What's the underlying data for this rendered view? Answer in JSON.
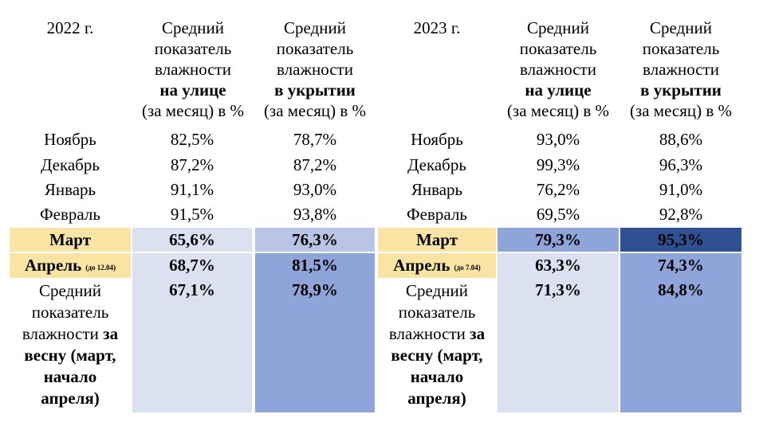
{
  "colors": {
    "highlight_month": "#fae4a4",
    "pale_blue": "#dbe1f1",
    "light_blue": "#b8c5e6",
    "medium_blue": "#8fa5d9",
    "dark_blue": "#2f5193"
  },
  "tables": [
    {
      "year": "2022 г.",
      "outdoor_header": [
        "Средний",
        "показатель",
        "влажности",
        "на улице",
        "(за месяц) в %"
      ],
      "shelter_header": [
        "Средний",
        "показатель",
        "влажности",
        "в укрытии",
        "(за месяц) в %"
      ],
      "rows": [
        {
          "month": "Ноябрь",
          "outdoor": "82,5%",
          "shelter": "78,7%"
        },
        {
          "month": "Декабрь",
          "outdoor": "87,2%",
          "shelter": "87,2%"
        },
        {
          "month": "Январь",
          "outdoor": "91,1%",
          "shelter": "93,0%"
        },
        {
          "month": "Февраль",
          "outdoor": "91,5%",
          "shelter": "93,8%"
        },
        {
          "month": "Март",
          "outdoor": "65,6%",
          "shelter": "76,3%"
        },
        {
          "month": "Апрель",
          "note": "(до 12.04)",
          "outdoor": "68,7%",
          "shelter": "81,5%"
        }
      ],
      "spring": {
        "label_lines": [
          "Средний",
          "показатель",
          "влажности ",
          "за",
          "весну (март,",
          "начало",
          "апреля)"
        ],
        "outdoor": "67,1%",
        "shelter": "78,9%"
      }
    },
    {
      "year": "2023 г.",
      "outdoor_header": [
        "Средний",
        "показатель",
        "влажности",
        "на улице",
        "(за месяц) в %"
      ],
      "shelter_header": [
        "Средний",
        "показатель",
        "влажности",
        "в укрытии",
        "(за месяц) в %"
      ],
      "rows": [
        {
          "month": "Ноябрь",
          "outdoor": "93,0%",
          "shelter": "88,6%"
        },
        {
          "month": "Декабрь",
          "outdoor": "99,3%",
          "shelter": "96,3%"
        },
        {
          "month": "Январь",
          "outdoor": "76,2%",
          "shelter": "91,0%"
        },
        {
          "month": "Февраль",
          "outdoor": "69,5%",
          "shelter": "92,8%"
        },
        {
          "month": "Март",
          "outdoor": "79,3%",
          "shelter": "95,3%"
        },
        {
          "month": "Апрель",
          "note": "(до 7.04)",
          "outdoor": "63,3%",
          "shelter": "74,3%"
        }
      ],
      "spring": {
        "label_lines": [
          "Средний",
          "показатель",
          "влажности ",
          "за",
          "весну (март,",
          "начало",
          "апреля)"
        ],
        "outdoor": "71,3%",
        "shelter": "84,8%"
      }
    }
  ]
}
